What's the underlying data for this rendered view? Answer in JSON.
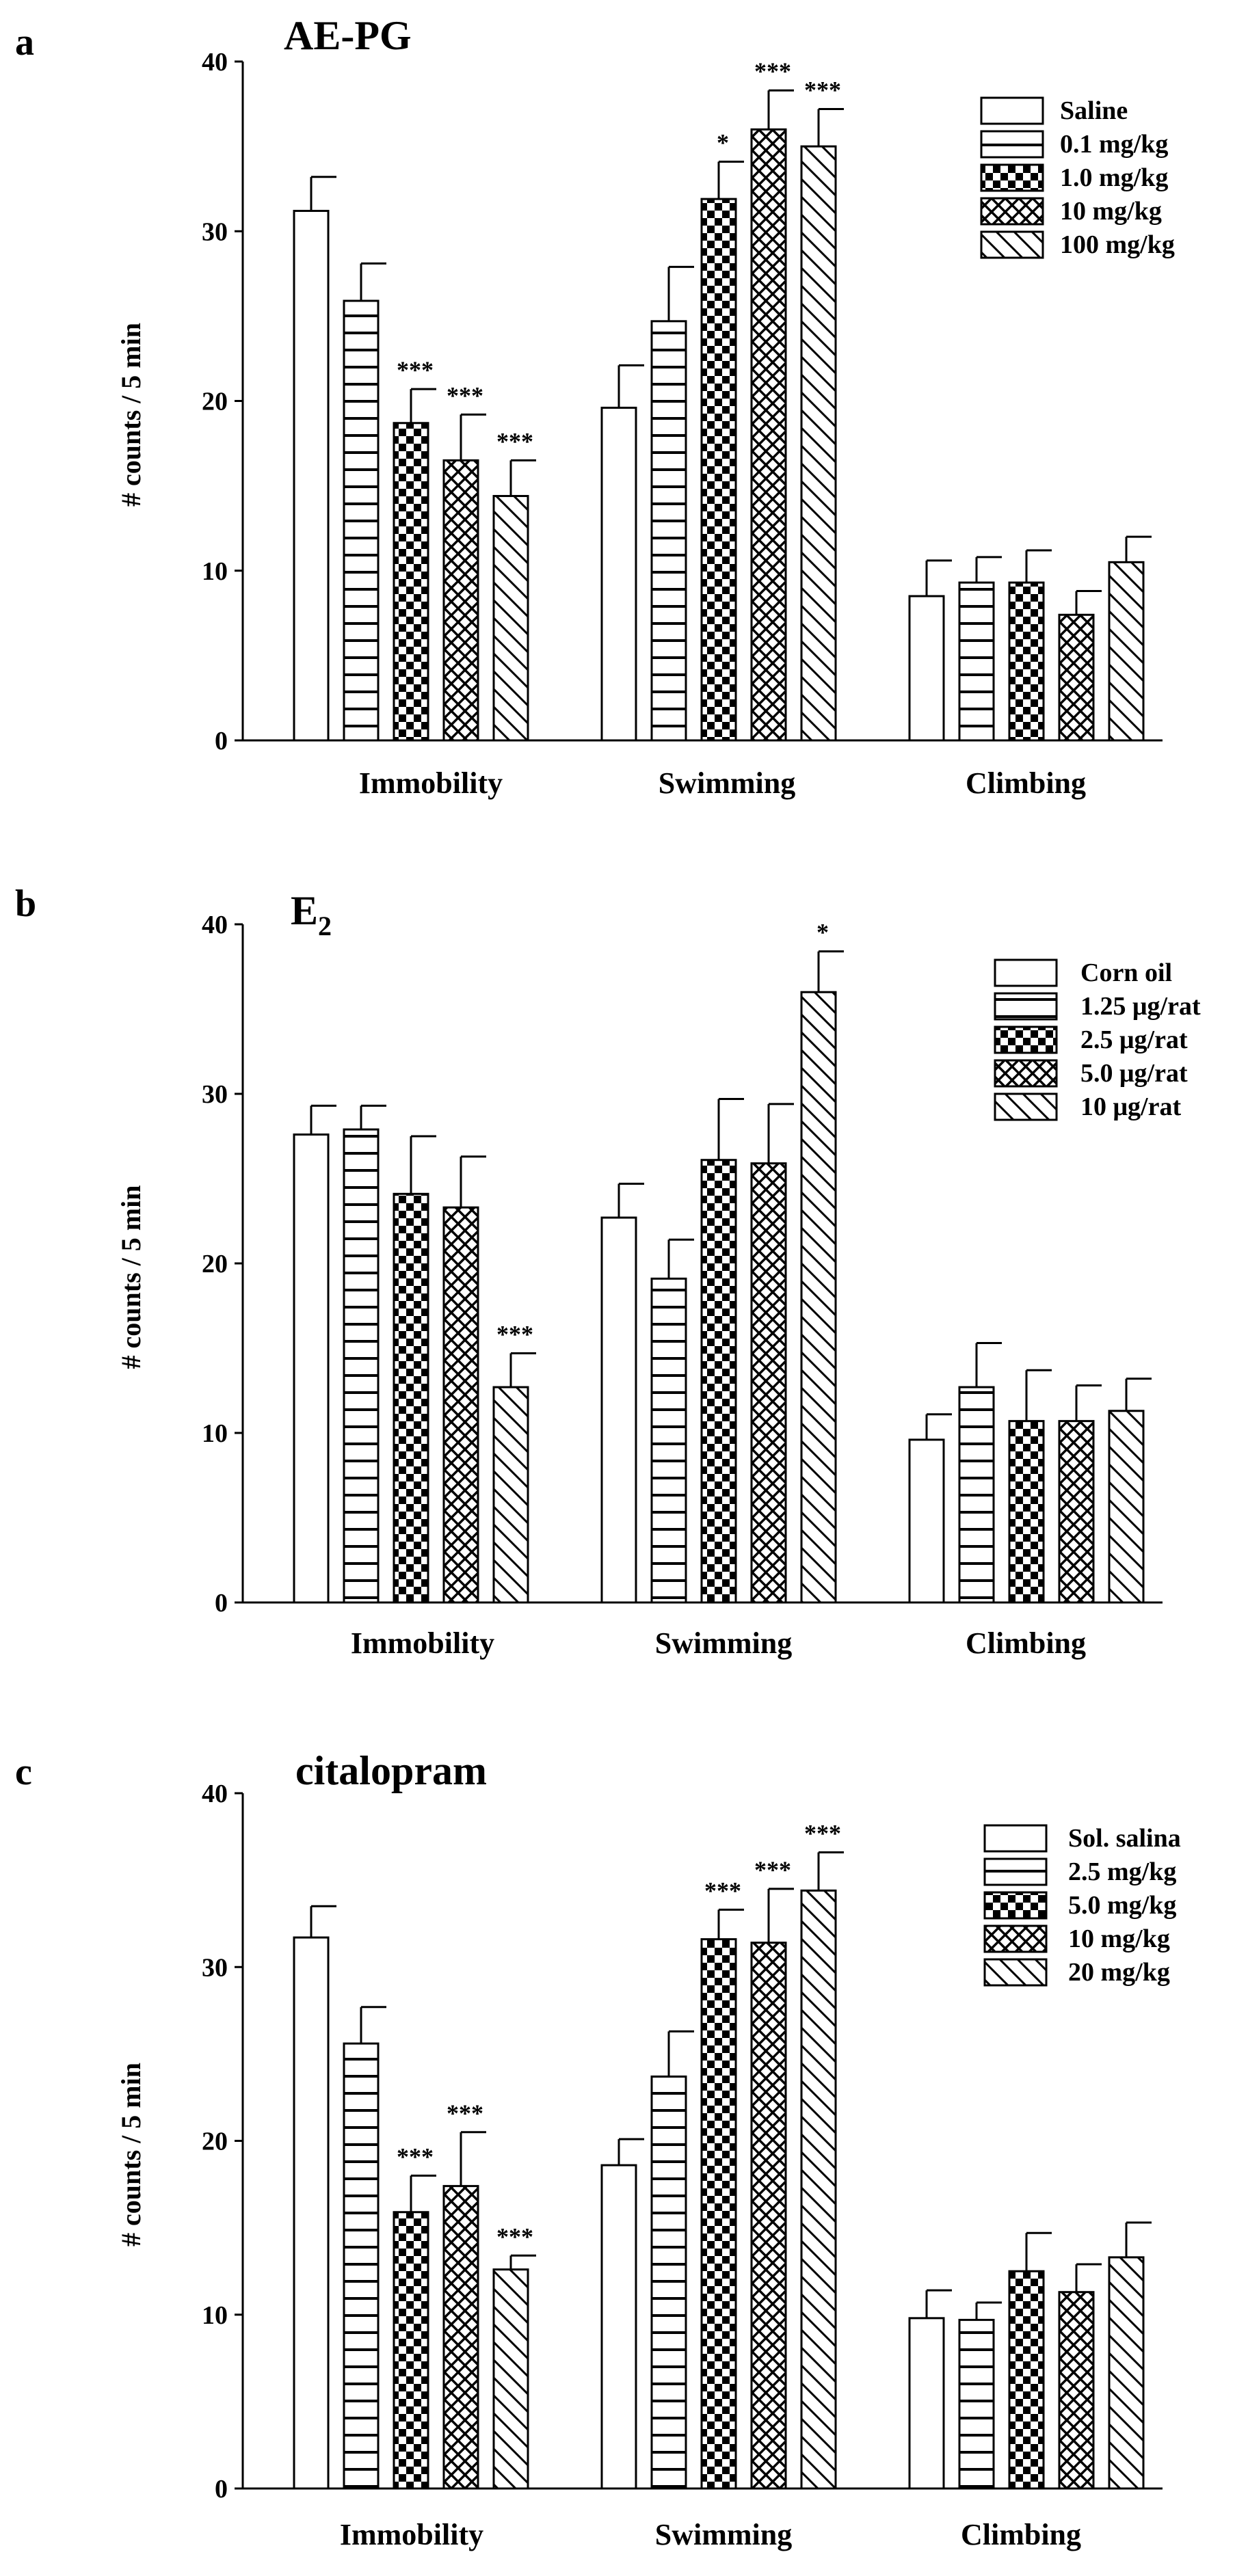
{
  "chart_data": [
    {
      "type": "bar",
      "panel": "a",
      "title": "AE-PG",
      "title_sub": "",
      "ylabel": "# counts / 5 min",
      "xlabel": "",
      "ylim": [
        0,
        40
      ],
      "yticks": [
        0,
        10,
        20,
        30,
        40
      ],
      "grid": false,
      "legend_position": "top-right",
      "categories": [
        "Immobility",
        "Swimming",
        "Climbing"
      ],
      "series": [
        {
          "name": "Saline",
          "pattern": "open",
          "values": [
            31.2,
            19.6,
            8.5
          ],
          "errors": [
            2.0,
            2.5,
            2.1
          ],
          "sig": [
            "",
            "",
            ""
          ]
        },
        {
          "name": "0.1 mg/kg",
          "pattern": "hlines",
          "values": [
            25.9,
            24.7,
            9.3
          ],
          "errors": [
            2.2,
            3.2,
            1.5
          ],
          "sig": [
            "",
            "",
            ""
          ]
        },
        {
          "name": "1.0 mg/kg",
          "pattern": "checker",
          "values": [
            18.7,
            31.9,
            9.3
          ],
          "errors": [
            2.0,
            2.2,
            1.9
          ],
          "sig": [
            "***",
            "*",
            ""
          ]
        },
        {
          "name": "10 mg/kg",
          "pattern": "crosshatch",
          "values": [
            16.5,
            36.0,
            7.4
          ],
          "errors": [
            2.7,
            2.3,
            1.4
          ],
          "sig": [
            "***",
            "***",
            ""
          ]
        },
        {
          "name": "100 mg/kg",
          "pattern": "diag",
          "values": [
            14.4,
            35.0,
            10.5
          ],
          "errors": [
            2.1,
            2.2,
            1.5
          ],
          "sig": [
            "***",
            "***",
            ""
          ]
        }
      ]
    },
    {
      "type": "bar",
      "panel": "b",
      "title": "E",
      "title_sub": "2",
      "ylabel": "# counts / 5 min",
      "xlabel": "",
      "ylim": [
        0,
        40
      ],
      "yticks": [
        0,
        10,
        20,
        30,
        40
      ],
      "grid": false,
      "legend_position": "top-right",
      "categories": [
        "Immobility",
        "Swimming",
        "Climbing"
      ],
      "series": [
        {
          "name": "Corn oil",
          "pattern": "open",
          "values": [
            27.6,
            22.7,
            9.6
          ],
          "errors": [
            1.7,
            2.0,
            1.5
          ],
          "sig": [
            "",
            "",
            ""
          ]
        },
        {
          "name": "1.25 μg/rat",
          "pattern": "hlines",
          "values": [
            27.9,
            19.1,
            12.7
          ],
          "errors": [
            1.4,
            2.3,
            2.6
          ],
          "sig": [
            "",
            "",
            ""
          ]
        },
        {
          "name": "2.5 μg/rat",
          "pattern": "checker",
          "values": [
            24.1,
            26.1,
            10.7
          ],
          "errors": [
            3.4,
            3.6,
            3.0
          ],
          "sig": [
            "",
            "",
            ""
          ]
        },
        {
          "name": "5.0 μg/rat",
          "pattern": "crosshatch",
          "values": [
            23.3,
            25.9,
            10.7
          ],
          "errors": [
            3.0,
            3.5,
            2.1
          ],
          "sig": [
            "",
            "",
            ""
          ]
        },
        {
          "name": "10 μg/rat",
          "pattern": "diag",
          "values": [
            12.7,
            36.0,
            11.3
          ],
          "errors": [
            2.0,
            2.4,
            1.9
          ],
          "sig": [
            "***",
            "*",
            ""
          ]
        }
      ]
    },
    {
      "type": "bar",
      "panel": "c",
      "title": "citalopram",
      "title_sub": "",
      "ylabel": "# counts / 5 min",
      "xlabel": "",
      "ylim": [
        0,
        40
      ],
      "yticks": [
        0,
        10,
        20,
        30,
        40
      ],
      "grid": false,
      "legend_position": "top-right",
      "categories": [
        "Immobility",
        "Swimming",
        "Climbing"
      ],
      "series": [
        {
          "name": "Sol. salina",
          "pattern": "open",
          "values": [
            31.7,
            18.6,
            9.8
          ],
          "errors": [
            1.8,
            1.5,
            1.6
          ],
          "sig": [
            "",
            "",
            ""
          ]
        },
        {
          "name": "2.5 mg/kg",
          "pattern": "hlines",
          "values": [
            25.6,
            23.7,
            9.7
          ],
          "errors": [
            2.1,
            2.6,
            1.0
          ],
          "sig": [
            "",
            "",
            ""
          ]
        },
        {
          "name": "5.0 mg/kg",
          "pattern": "checker",
          "values": [
            15.9,
            31.6,
            12.5
          ],
          "errors": [
            2.1,
            1.7,
            2.2
          ],
          "sig": [
            "***",
            "***",
            ""
          ]
        },
        {
          "name": "10 mg/kg",
          "pattern": "crosshatch",
          "values": [
            17.4,
            31.4,
            11.3
          ],
          "errors": [
            3.1,
            3.1,
            1.6
          ],
          "sig": [
            "***",
            "***",
            ""
          ]
        },
        {
          "name": "20 mg/kg",
          "pattern": "diag",
          "values": [
            12.6,
            34.4,
            13.3
          ],
          "errors": [
            0.8,
            2.2,
            2.0
          ],
          "sig": [
            "***",
            "***",
            ""
          ]
        }
      ]
    }
  ]
}
